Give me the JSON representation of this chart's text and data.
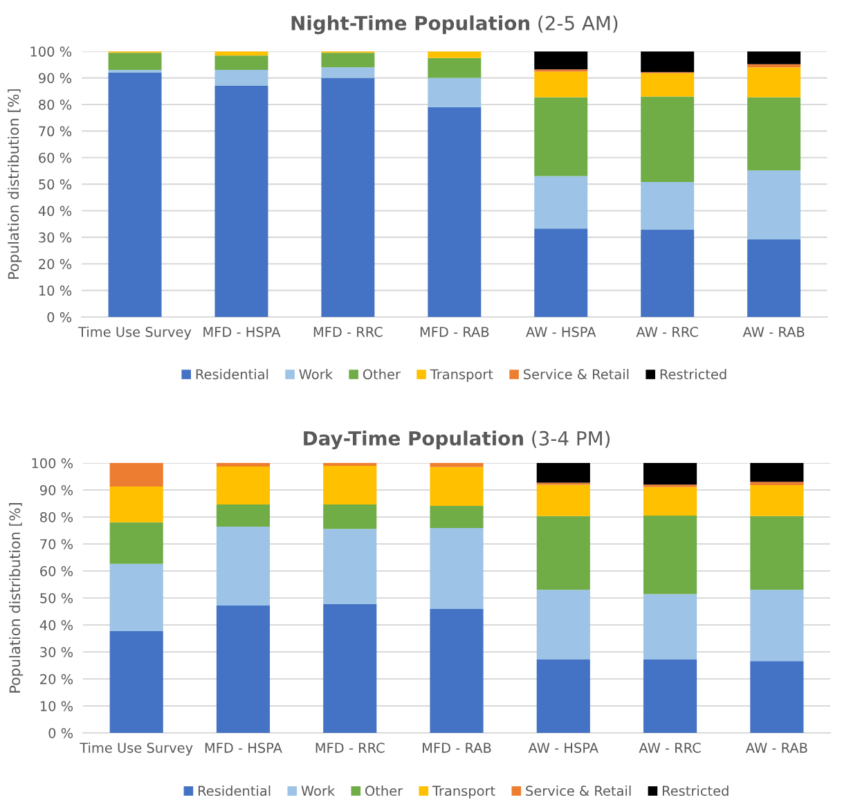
{
  "chart_data": [
    {
      "type": "bar",
      "stacked": true,
      "title": "Night-Time Population",
      "subtitle": "(2-5 AM)",
      "ylabel": "Population distribution [%]",
      "categories": [
        "Time Use Survey",
        "MFD - HSPA",
        "MFD - RRC",
        "MFD - RAB",
        "AW - HSPA",
        "AW - RRC",
        "AW - RAB"
      ],
      "ylim": [
        0,
        100
      ],
      "yticks": [
        {
          "value": 0,
          "label": "0 %"
        },
        {
          "value": 10,
          "label": "10 %"
        },
        {
          "value": 20,
          "label": "20 %"
        },
        {
          "value": 30,
          "label": "30 %"
        },
        {
          "value": 40,
          "label": "40 %"
        },
        {
          "value": 50,
          "label": "50 %"
        },
        {
          "value": 60,
          "label": "60 %"
        },
        {
          "value": 70,
          "label": "70 %"
        },
        {
          "value": 80,
          "label": "80 %"
        },
        {
          "value": 90,
          "label": "90 %"
        },
        {
          "value": 100,
          "label": "100 %"
        }
      ],
      "grid": "y",
      "legend": "bottom",
      "series": [
        {
          "name": "Residential",
          "color": "#4472c4",
          "values": [
            92,
            87,
            90,
            79,
            33.3,
            32.8,
            29.2
          ]
        },
        {
          "name": "Work",
          "color": "#9dc3e6",
          "values": [
            1,
            6,
            4,
            11,
            19.7,
            18,
            26
          ]
        },
        {
          "name": "Other",
          "color": "#70ad47",
          "values": [
            6.5,
            5.4,
            5.5,
            7.5,
            29.7,
            32.2,
            27.5
          ]
        },
        {
          "name": "Transport",
          "color": "#ffc000",
          "values": [
            0.5,
            1.6,
            0.5,
            2.5,
            9.7,
            8.8,
            11.3
          ]
        },
        {
          "name": "Service & Retail",
          "color": "#ed7d31",
          "values": [
            0,
            0,
            0,
            0,
            0.8,
            0.4,
            1.2
          ]
        },
        {
          "name": "Restricted",
          "color": "#000000",
          "values": [
            0,
            0,
            0,
            0,
            6.8,
            7.8,
            4.8
          ]
        }
      ]
    },
    {
      "type": "bar",
      "stacked": true,
      "title": "Day-Time Population",
      "subtitle": "(3-4 PM)",
      "ylabel": "Population distribution [%]",
      "categories": [
        "Time Use Survey",
        "MFD - HSPA",
        "MFD - RRC",
        "MFD - RAB",
        "AW - HSPA",
        "AW - RRC",
        "AW - RAB"
      ],
      "ylim": [
        0,
        100
      ],
      "yticks": [
        {
          "value": 0,
          "label": "0 %"
        },
        {
          "value": 10,
          "label": "10 %"
        },
        {
          "value": 20,
          "label": "20 %"
        },
        {
          "value": 30,
          "label": "30 %"
        },
        {
          "value": 40,
          "label": "40 %"
        },
        {
          "value": 50,
          "label": "50 %"
        },
        {
          "value": 60,
          "label": "60 %"
        },
        {
          "value": 70,
          "label": "70 %"
        },
        {
          "value": 80,
          "label": "80 %"
        },
        {
          "value": 90,
          "label": "90 %"
        },
        {
          "value": 100,
          "label": "100 %"
        }
      ],
      "grid": "y",
      "legend": "bottom",
      "series": [
        {
          "name": "Residential",
          "color": "#4472c4",
          "values": [
            37.7,
            47.2,
            47.7,
            45.9,
            27.2,
            27.2,
            26.6
          ]
        },
        {
          "name": "Work",
          "color": "#9dc3e6",
          "values": [
            24.9,
            29.2,
            27.9,
            30,
            25.8,
            24.2,
            26.4
          ]
        },
        {
          "name": "Other",
          "color": "#70ad47",
          "values": [
            15.4,
            8.2,
            9,
            8.2,
            27.3,
            29.1,
            27.3
          ]
        },
        {
          "name": "Transport",
          "color": "#ffc000",
          "values": [
            13.3,
            14.1,
            14.4,
            14.4,
            11.6,
            10.6,
            11.5
          ]
        },
        {
          "name": "Service & Retail",
          "color": "#ed7d31",
          "values": [
            8.7,
            1.3,
            1,
            1.5,
            0.8,
            0.9,
            1.2
          ]
        },
        {
          "name": "Restricted",
          "color": "#000000",
          "values": [
            0,
            0,
            0,
            0,
            7.3,
            8,
            7
          ]
        }
      ]
    }
  ]
}
